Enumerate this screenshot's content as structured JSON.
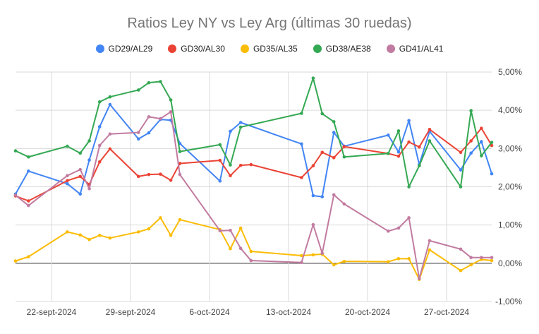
{
  "chart_data": {
    "type": "line",
    "title": "Ratios Ley NY vs Ley Arg (últimas 30 ruedas)",
    "xlabel": "",
    "ylabel": "",
    "ylim": [
      -0.01,
      0.05
    ],
    "y_ticks": [
      "5,00%",
      "4,00%",
      "3,00%",
      "2,00%",
      "1,00%",
      "0,00%",
      "-1,00%"
    ],
    "x_ticks": [
      "22-sept-2024",
      "29-sept-2024",
      "6-oct-2024",
      "13-oct-2024",
      "20-oct-2024",
      "27-oct-2024"
    ],
    "grid": true,
    "legend_position": "top",
    "x": [
      "2024-09-18",
      "2024-09-19",
      "2024-09-20",
      "2024-09-23",
      "2024-09-24",
      "2024-09-25",
      "2024-09-26",
      "2024-09-27",
      "2024-09-30",
      "2024-10-01",
      "2024-10-02",
      "2024-10-03",
      "2024-10-04",
      "2024-10-07",
      "2024-10-08",
      "2024-10-09",
      "2024-10-10",
      "2024-10-11",
      "2024-10-14",
      "2024-10-15",
      "2024-10-16",
      "2024-10-17",
      "2024-10-18",
      "2024-10-21",
      "2024-10-22",
      "2024-10-23",
      "2024-10-24",
      "2024-10-25",
      "2024-10-28",
      "2024-10-29",
      "2024-10-30",
      "2024-10-31"
    ],
    "series": [
      {
        "name": "GD29/AL29",
        "color": "#4285f4",
        "points": [
          [
            "2024-09-17",
            0.0181
          ],
          [
            "2024-09-18",
            0.0241
          ],
          [
            "2024-09-21",
            0.0208
          ],
          [
            "2024-09-22",
            0.0181
          ],
          [
            "2024-09-22.7",
            0.027
          ],
          [
            "2024-09-23.5",
            0.0357
          ],
          [
            "2024-09-24.3",
            0.0415
          ],
          [
            "2024-09-26.5",
            0.0325
          ],
          [
            "2024-09-27.3",
            0.0341
          ],
          [
            "2024-09-28.2",
            0.0376
          ],
          [
            "2024-09-29",
            0.0374
          ],
          [
            "2024-09-29.7",
            0.0313
          ],
          [
            "2024-10-02.8",
            0.0215
          ],
          [
            "2024-10-03.6",
            0.0345
          ],
          [
            "2024-10-04.4",
            0.0368
          ],
          [
            "2024-10-09.1",
            0.0312
          ],
          [
            "2024-10-10",
            0.0177
          ],
          [
            "2024-10-10.7",
            0.0174
          ],
          [
            "2024-10-11.6",
            0.0342
          ],
          [
            "2024-10-12.4",
            0.0306
          ],
          [
            "2024-10-15.8",
            0.0335
          ],
          [
            "2024-10-16.6",
            0.0291
          ],
          [
            "2024-10-17.4",
            0.0373
          ],
          [
            "2024-10-18.2",
            0.0258
          ],
          [
            "2024-10-19",
            0.0345
          ],
          [
            "2024-10-21.4",
            0.0244
          ],
          [
            "2024-10-22.2",
            0.0288
          ],
          [
            "2024-10-23",
            0.0318
          ],
          [
            "2024-10-23.8",
            0.0234
          ]
        ]
      },
      {
        "name": "GD30/AL30",
        "color": "#ea4335",
        "points": [
          [
            "2024-09-17",
            0.0176
          ],
          [
            "2024-09-18",
            0.0163
          ],
          [
            "2024-09-21",
            0.0216
          ],
          [
            "2024-09-22",
            0.0227
          ],
          [
            "2024-09-22.7",
            0.0206
          ],
          [
            "2024-09-23.5",
            0.0265
          ],
          [
            "2024-09-24.3",
            0.0299
          ],
          [
            "2024-09-26.5",
            0.0227
          ],
          [
            "2024-09-27.3",
            0.0232
          ],
          [
            "2024-09-28.2",
            0.0233
          ],
          [
            "2024-09-29",
            0.0217
          ],
          [
            "2024-09-29.7",
            0.0261
          ],
          [
            "2024-10-02.8",
            0.0269
          ],
          [
            "2024-10-03.6",
            0.0229
          ],
          [
            "2024-10-04.4",
            0.0256
          ],
          [
            "2024-10-05.2",
            0.0258
          ],
          [
            "2024-10-09.1",
            0.0224
          ],
          [
            "2024-10-10",
            0.0255
          ],
          [
            "2024-10-10.7",
            0.029
          ],
          [
            "2024-10-11.6",
            0.0276
          ],
          [
            "2024-10-12.4",
            0.0305
          ],
          [
            "2024-10-15.8",
            0.0287
          ],
          [
            "2024-10-16.6",
            0.028
          ],
          [
            "2024-10-17.4",
            0.0317
          ],
          [
            "2024-10-18.2",
            0.0304
          ],
          [
            "2024-10-19",
            0.035
          ],
          [
            "2024-10-21.4",
            0.029
          ],
          [
            "2024-10-22.2",
            0.032
          ],
          [
            "2024-10-23",
            0.0353
          ],
          [
            "2024-10-23.8",
            0.0308
          ]
        ]
      },
      {
        "name": "GD35/AL35",
        "color": "#fbbc04",
        "points": [
          [
            "2024-09-17",
            0.0006
          ],
          [
            "2024-09-18",
            0.0017
          ],
          [
            "2024-09-21",
            0.0082
          ],
          [
            "2024-09-22",
            0.0074
          ],
          [
            "2024-09-22.7",
            0.0062
          ],
          [
            "2024-09-23.5",
            0.0073
          ],
          [
            "2024-09-24.3",
            0.0066
          ],
          [
            "2024-09-26.5",
            0.0082
          ],
          [
            "2024-09-27.3",
            0.009
          ],
          [
            "2024-09-28.2",
            0.0119
          ],
          [
            "2024-09-29",
            0.0073
          ],
          [
            "2024-09-29.7",
            0.0114
          ],
          [
            "2024-10-02.8",
            0.0088
          ],
          [
            "2024-10-03.6",
            0.0038
          ],
          [
            "2024-10-04.4",
            0.0092
          ],
          [
            "2024-10-05.2",
            0.0031
          ],
          [
            "2024-10-09.1",
            0.002
          ],
          [
            "2024-10-10",
            0.0022
          ],
          [
            "2024-10-10.7",
            0.0024
          ],
          [
            "2024-10-11.6",
            -0.0004
          ],
          [
            "2024-10-12.4",
            0.0005
          ],
          [
            "2024-10-15.8",
            0.0004
          ],
          [
            "2024-10-16.6",
            0.0012
          ],
          [
            "2024-10-17.4",
            0.0012
          ],
          [
            "2024-10-18.2",
            -0.0042
          ],
          [
            "2024-10-19",
            0.0035
          ],
          [
            "2024-10-21.4",
            -0.0019
          ],
          [
            "2024-10-22.2",
            -0.0004
          ],
          [
            "2024-10-23",
            0.001
          ],
          [
            "2024-10-23.8",
            0.0007
          ]
        ]
      },
      {
        "name": "GD38/AE38",
        "color": "#34a853",
        "points": [
          [
            "2024-09-17",
            0.0294
          ],
          [
            "2024-09-18",
            0.0278
          ],
          [
            "2024-09-21",
            0.0306
          ],
          [
            "2024-09-22",
            0.0288
          ],
          [
            "2024-09-22.7",
            0.032
          ],
          [
            "2024-09-23.5",
            0.0422
          ],
          [
            "2024-09-24.3",
            0.0435
          ],
          [
            "2024-09-26.5",
            0.0453
          ],
          [
            "2024-09-27.3",
            0.0472
          ],
          [
            "2024-09-28.2",
            0.0475
          ],
          [
            "2024-09-29",
            0.0427
          ],
          [
            "2024-09-29.7",
            0.0292
          ],
          [
            "2024-10-02.8",
            0.031
          ],
          [
            "2024-10-03.6",
            0.0257
          ],
          [
            "2024-10-04.4",
            0.0356
          ],
          [
            "2024-10-09.1",
            0.0392
          ],
          [
            "2024-10-10",
            0.0484
          ],
          [
            "2024-10-10.7",
            0.0391
          ],
          [
            "2024-10-11.6",
            0.037
          ],
          [
            "2024-10-12.4",
            0.0278
          ],
          [
            "2024-10-15.8",
            0.0287
          ],
          [
            "2024-10-16.6",
            0.0346
          ],
          [
            "2024-10-17.4",
            0.02
          ],
          [
            "2024-10-18.2",
            0.0255
          ],
          [
            "2024-10-19",
            0.032
          ],
          [
            "2024-10-21.4",
            0.02
          ],
          [
            "2024-10-22.2",
            0.0399
          ],
          [
            "2024-10-23",
            0.0281
          ],
          [
            "2024-10-23.8",
            0.0316
          ]
        ]
      },
      {
        "name": "GD41/AL41",
        "color": "#c27ba0",
        "points": [
          [
            "2024-09-17",
            0.0178
          ],
          [
            "2024-09-18",
            0.0151
          ],
          [
            "2024-09-21",
            0.0229
          ],
          [
            "2024-09-22",
            0.0245
          ],
          [
            "2024-09-22.7",
            0.0195
          ],
          [
            "2024-09-23.5",
            0.0308
          ],
          [
            "2024-09-24.3",
            0.0338
          ],
          [
            "2024-09-26.5",
            0.0342
          ],
          [
            "2024-09-27.3",
            0.0383
          ],
          [
            "2024-09-28.2",
            0.0378
          ],
          [
            "2024-09-29",
            0.0396
          ],
          [
            "2024-09-29.7",
            0.0232
          ],
          [
            "2024-10-02.8",
            0.0085
          ],
          [
            "2024-10-03.6",
            0.0086
          ],
          [
            "2024-10-04.4",
            0.0039
          ],
          [
            "2024-10-05.2",
            0.0007
          ],
          [
            "2024-10-09.1",
            0.0002
          ],
          [
            "2024-10-10",
            0.0101
          ],
          [
            "2024-10-10.7",
            0.0026
          ],
          [
            "2024-10-11.6",
            0.0179
          ],
          [
            "2024-10-12.4",
            0.0155
          ],
          [
            "2024-10-15.8",
            0.0084
          ],
          [
            "2024-10-16.6",
            0.0092
          ],
          [
            "2024-10-17.4",
            0.0119
          ],
          [
            "2024-10-18.2",
            -0.004
          ],
          [
            "2024-10-19",
            0.0059
          ],
          [
            "2024-10-21.4",
            0.0037
          ],
          [
            "2024-10-22.2",
            0.0015
          ],
          [
            "2024-10-23",
            0.0015
          ],
          [
            "2024-10-23.8",
            0.0015
          ]
        ]
      }
    ]
  }
}
